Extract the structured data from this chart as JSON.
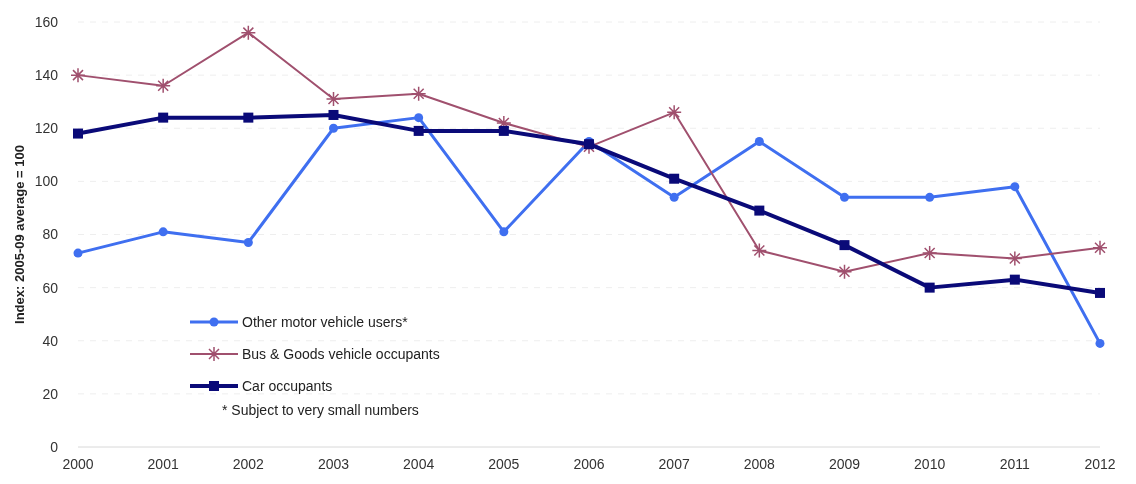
{
  "chart_data": {
    "type": "line",
    "ylabel": "Index: 2005-09 average = 100",
    "x": [
      2000,
      2001,
      2002,
      2003,
      2004,
      2005,
      2006,
      2007,
      2008,
      2009,
      2010,
      2011,
      2012
    ],
    "xlim": [
      2000,
      2012
    ],
    "xticks": [
      2000,
      2001,
      2002,
      2003,
      2004,
      2005,
      2006,
      2007,
      2008,
      2009,
      2010,
      2011,
      2012
    ],
    "ylim": [
      0,
      160
    ],
    "yticks": [
      0,
      20,
      40,
      60,
      80,
      100,
      120,
      140,
      160
    ],
    "grid": "y",
    "legend": "bottom left",
    "series": [
      {
        "name": "Other motor vehicle users*",
        "color": "#3f6ff0",
        "marker": "circle",
        "values": [
          73,
          81,
          77,
          120,
          124,
          81,
          115,
          94,
          115,
          94,
          94,
          98,
          39
        ]
      },
      {
        "name": "Bus & Goods vehicle occupants",
        "color": "#a0506e",
        "marker": "cross",
        "values": [
          140,
          136,
          156,
          131,
          133,
          122,
          113,
          126,
          74,
          66,
          73,
          71,
          75
        ]
      },
      {
        "name": "Car occupants",
        "color": "#0a0a78",
        "marker": "square",
        "values": [
          118,
          124,
          124,
          125,
          119,
          119,
          114,
          101,
          89,
          76,
          60,
          63,
          58
        ]
      }
    ],
    "annotations": [
      "* Subject to very small numbers"
    ]
  }
}
